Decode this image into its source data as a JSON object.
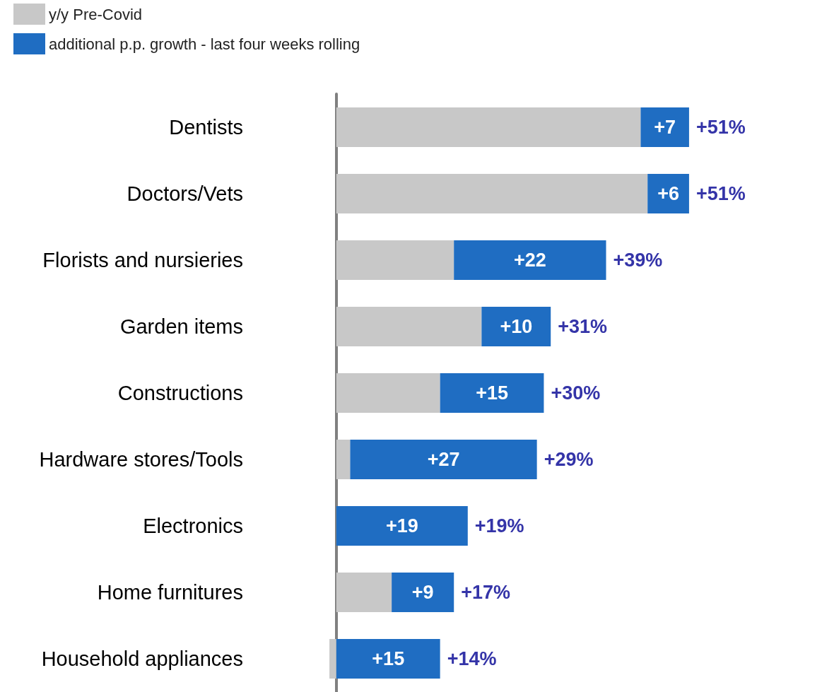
{
  "chart_data": {
    "type": "bar",
    "orientation": "horizontal",
    "stacked": true,
    "legend": "top left",
    "categories": [
      "Dentists",
      "Doctors/Vets",
      "Florists and nursieries",
      "Garden items",
      "Constructions",
      "Hardware stores/Tools",
      "Electronics",
      "Home furnitures",
      "Household appliances"
    ],
    "series": [
      {
        "name": "y/y Pre-Covid",
        "color": "#c8c8c8",
        "values": [
          44,
          45,
          17,
          21,
          15,
          2,
          0,
          8,
          -1
        ]
      },
      {
        "name": "additional p.p. growth - last four weeks rolling",
        "color": "#1f6dc2",
        "values": [
          7,
          6,
          22,
          10,
          15,
          27,
          19,
          9,
          15
        ],
        "value_labels": [
          "+7",
          "+6",
          "+22",
          "+10",
          "+15",
          "+27",
          "+19",
          "+9",
          "+15"
        ]
      }
    ],
    "totals": [
      "+51%",
      "+51%",
      "+39%",
      "+31%",
      "+30%",
      "+29%",
      "+19%",
      "+17%",
      "+14%"
    ]
  }
}
